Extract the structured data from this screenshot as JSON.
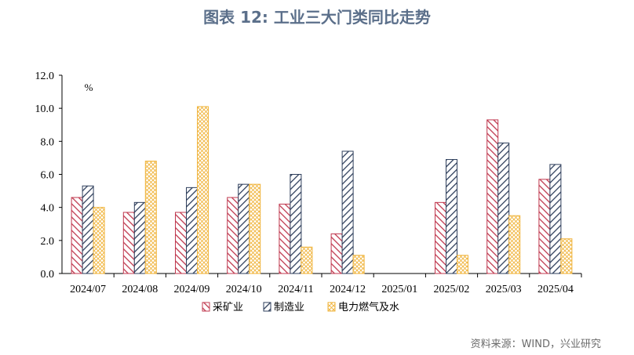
{
  "title": "图表 12: 工业三大门类同比走势",
  "source": "资料来源：WIND，兴业研究",
  "colors": {
    "mining": "#c0394f",
    "manufacturing": "#2f3f5c",
    "utilities": "#f0b43c"
  },
  "chart_data": {
    "type": "bar",
    "unit_label": "%",
    "categories": [
      "2024/07",
      "2024/08",
      "2024/09",
      "2024/10",
      "2024/11",
      "2024/12",
      "2025/01",
      "2025/02",
      "2025/03",
      "2025/04"
    ],
    "series": [
      {
        "name": "采矿业",
        "values": [
          4.6,
          3.7,
          3.7,
          4.6,
          4.2,
          2.4,
          null,
          4.3,
          9.3,
          5.7
        ]
      },
      {
        "name": "制造业",
        "values": [
          5.3,
          4.3,
          5.2,
          5.4,
          6.0,
          7.4,
          null,
          6.9,
          7.9,
          6.6
        ]
      },
      {
        "name": "电力燃气及水",
        "values": [
          4.0,
          6.8,
          10.1,
          5.4,
          1.6,
          1.1,
          null,
          1.1,
          3.5,
          2.1
        ]
      }
    ],
    "ylim": [
      0,
      12
    ],
    "yticks": [
      "0.0",
      "2.0",
      "4.0",
      "6.0",
      "8.0",
      "10.0",
      "12.0"
    ],
    "legend_position": "bottom"
  }
}
